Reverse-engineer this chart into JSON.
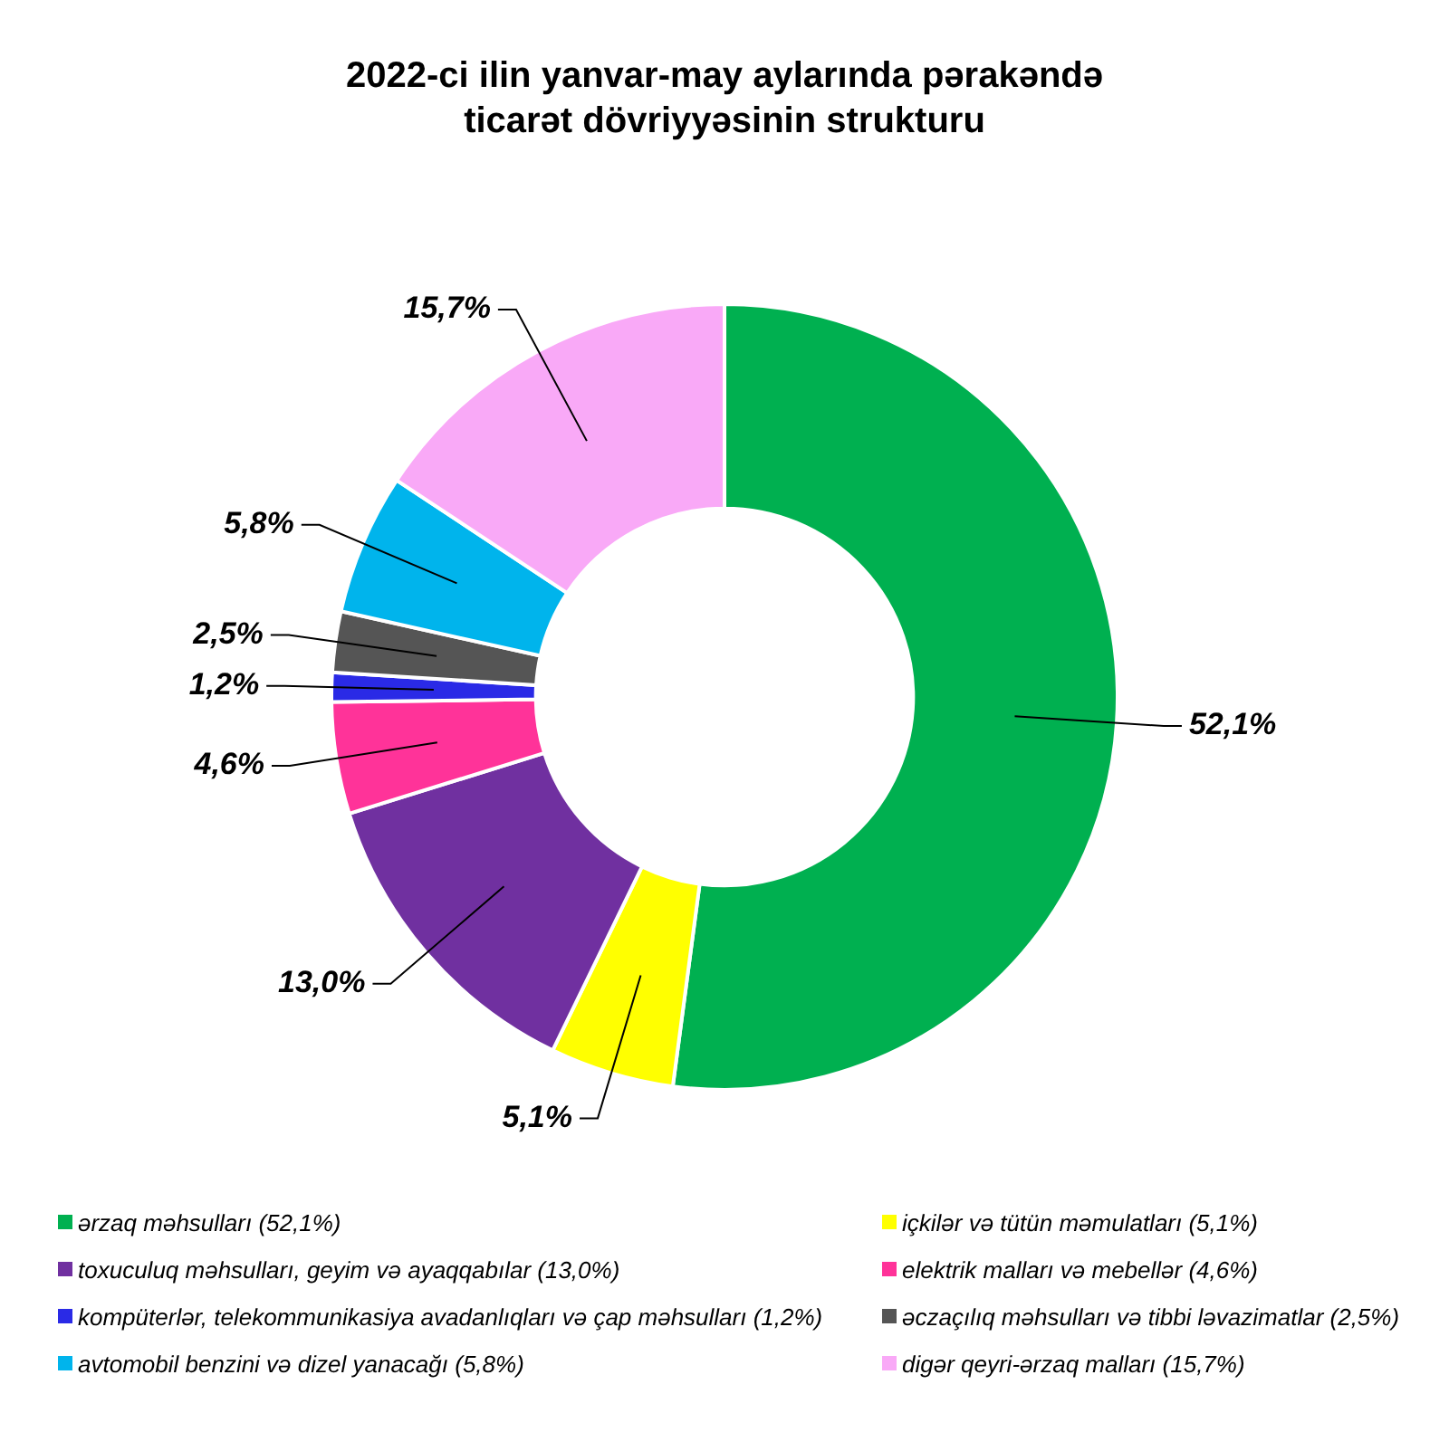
{
  "chart_data": {
    "type": "donut",
    "title": "2022-ci ilin yanvar-may aylarında pərakəndə ticarət dövriyyəsinin strukturu",
    "categories": [
      "ərzaq məhsulları (52,1%)",
      "içkilər və tütün məmulatları (5,1%)",
      "toxuculuq məhsulları, geyim və ayaqqabılar (13,0%)",
      "elektrik malları və mebellər (4,6%)",
      "kompüterlər, telekommunikasiya avadanlıqları və çap məhsulları (1,2%)",
      "əczaçılıq məhsulları və tibbi ləvazimatlar (2,5%)",
      "avtomobil benzini və dizel yanacağı (5,8%)",
      "digər qeyri-ərzaq malları (15,7%)"
    ],
    "values": [
      52.1,
      5.1,
      13.0,
      4.6,
      1.2,
      2.5,
      5.8,
      15.7
    ],
    "colors": [
      "#00b050",
      "#ffff00",
      "#7030a0",
      "#ff3399",
      "#2a2ae6",
      "#555555",
      "#00b4ec",
      "#f9a9f7"
    ],
    "value_labels": [
      "52,1%",
      "5,1%",
      "13,0%",
      "4,6%",
      "1,2%",
      "2,5%",
      "5,8%",
      "15,7%"
    ],
    "legend": "bottom"
  }
}
